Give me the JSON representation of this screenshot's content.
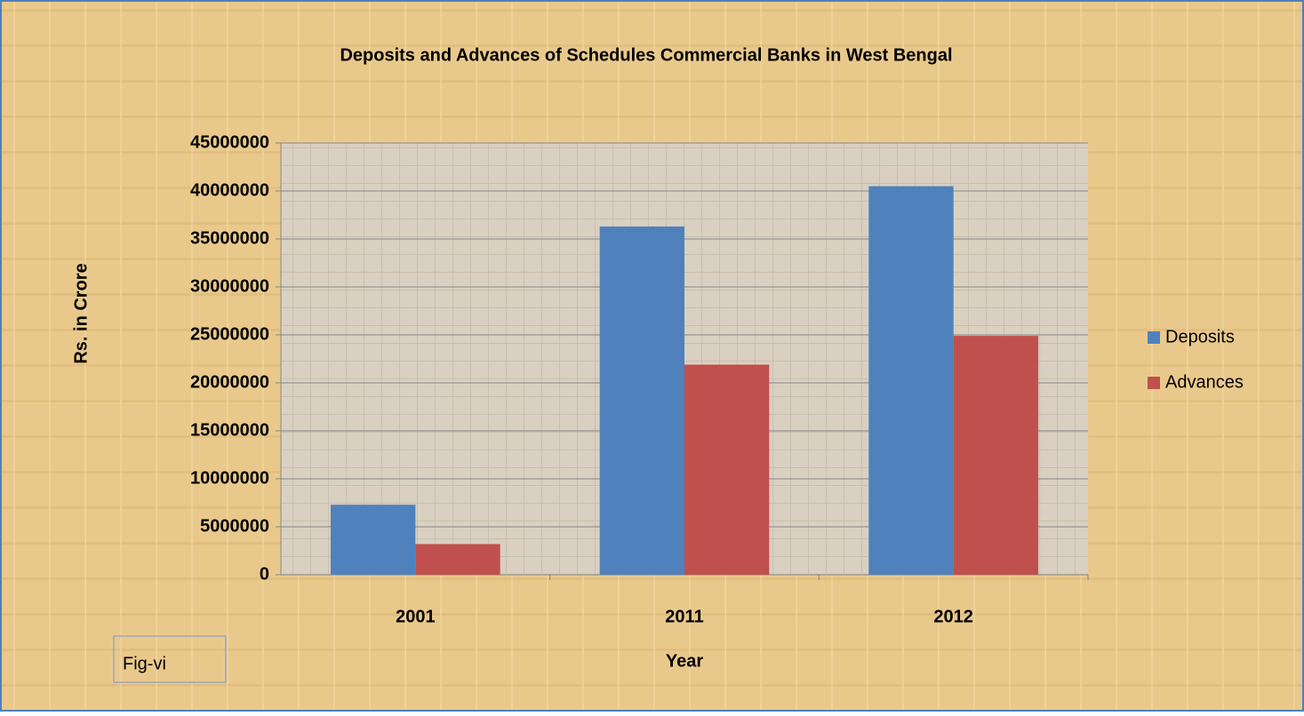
{
  "chart_data": {
    "type": "bar",
    "title": "Deposits and Advances of Schedules Commercial Banks in West Bengal",
    "xlabel": "Year",
    "ylabel": "Rs. in Crore",
    "annotation": "Fig-vi",
    "categories": [
      "2001",
      "2011",
      "2012"
    ],
    "series": [
      {
        "name": "Deposits",
        "color": "#4f81bd",
        "values": [
          7300000,
          36300000,
          40500000
        ]
      },
      {
        "name": "Advances",
        "color": "#c0504d",
        "values": [
          3200000,
          21900000,
          24900000
        ]
      }
    ],
    "ylim": [
      0,
      45000000
    ],
    "yticks": [
      0,
      5000000,
      10000000,
      15000000,
      20000000,
      25000000,
      30000000,
      35000000,
      40000000,
      45000000
    ],
    "grid": true,
    "legend": "right"
  }
}
